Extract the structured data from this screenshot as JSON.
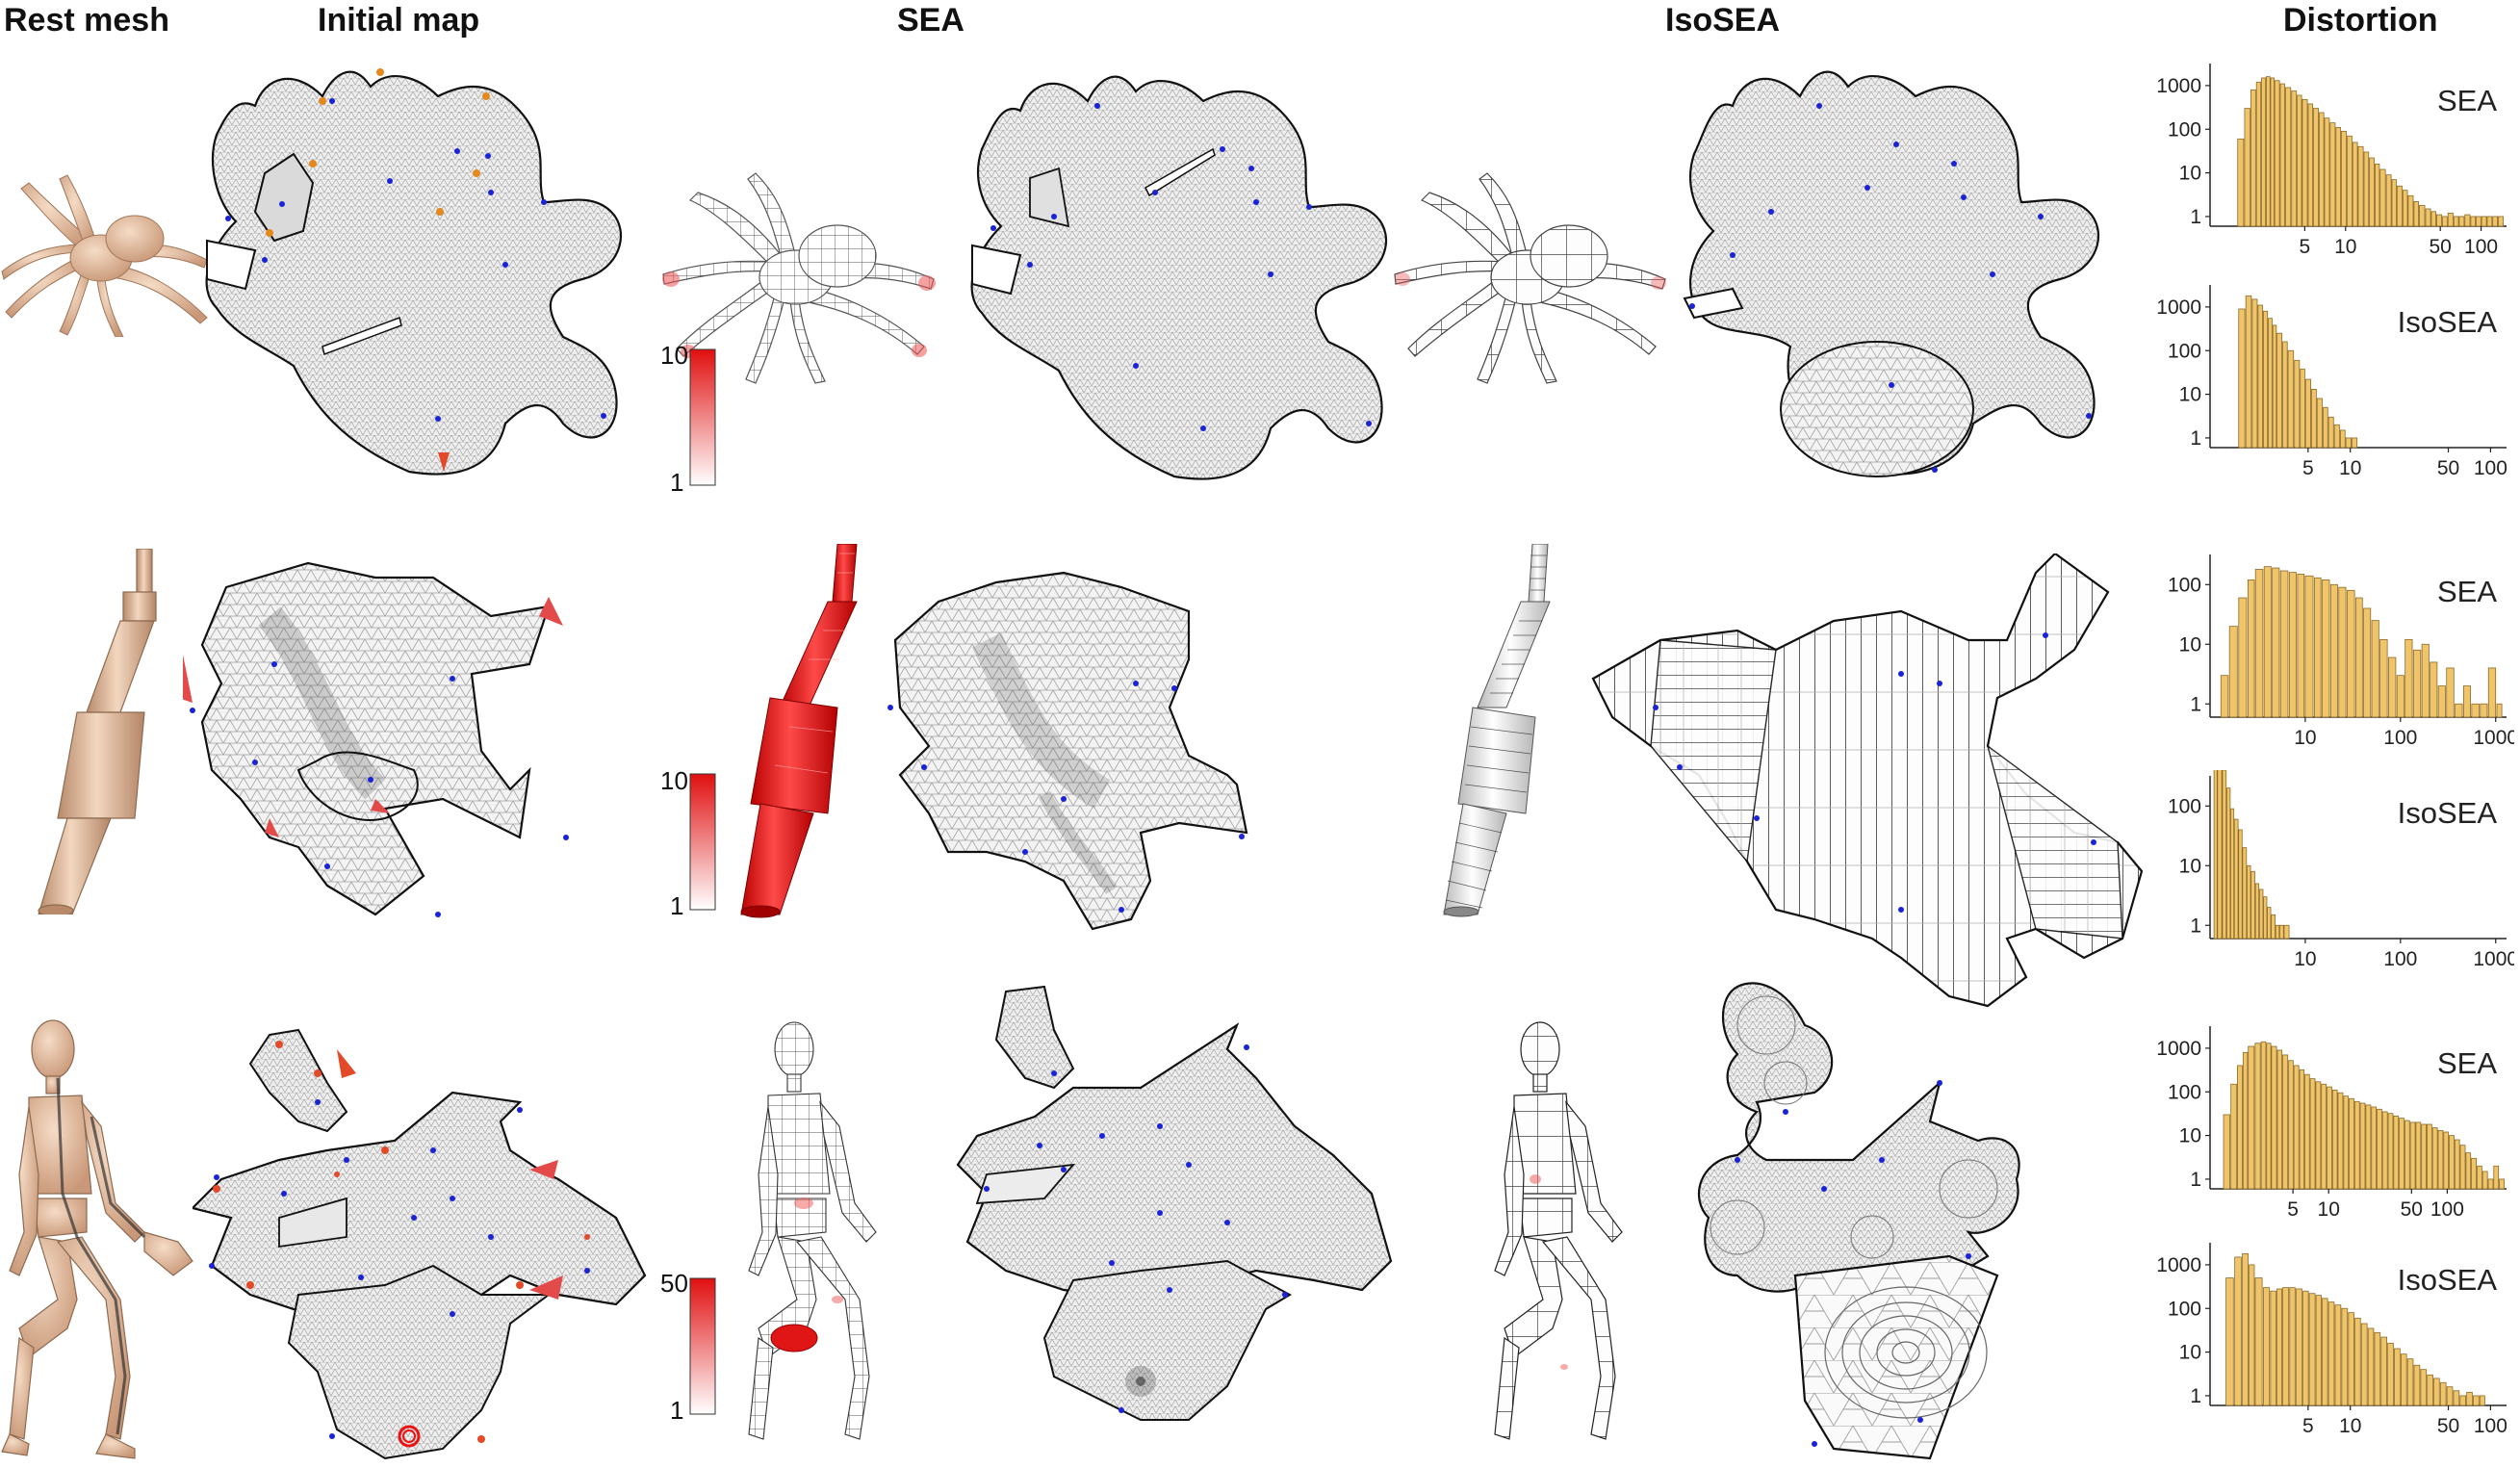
{
  "columns": {
    "rest_mesh": "Rest mesh",
    "initial_map": "Initial map",
    "sea": "SEA",
    "isosea": "IsoSEA",
    "distortion": "Distortion"
  },
  "colorbars": [
    {
      "max": "10",
      "min": "1"
    },
    {
      "max": "10",
      "min": "1"
    },
    {
      "max": "50",
      "min": "1"
    }
  ],
  "colors": {
    "bar_fill": "#f0c56a",
    "bar_stroke": "#8a6a2a",
    "colorbar_top": "#e01010",
    "mesh_fill": "#f1f1f1",
    "mesh_line": "#9a9a9a",
    "boundary": "#111111",
    "point": "#1a24d6",
    "flip": "#e34a2a",
    "rest_mesh": "#e8c3a2"
  },
  "chart_data": [
    {
      "type": "bar",
      "row": 1,
      "label": "SEA",
      "yscale": "log",
      "xscale": "log",
      "yticks": [
        "1000",
        "100",
        "10",
        "1"
      ],
      "xticks": [
        "5",
        "10",
        "50",
        "100"
      ],
      "x": [
        1.6,
        1.8,
        2,
        2.2,
        2.4,
        2.6,
        2.8,
        3,
        3.3,
        3.6,
        4,
        4.4,
        4.8,
        5.3,
        5.8,
        6.4,
        7,
        7.7,
        8.5,
        9.3,
        10.3,
        11.3,
        12.4,
        13.7,
        15,
        16.5,
        18,
        20,
        22,
        24,
        26.5,
        29,
        32,
        35,
        39,
        43,
        47,
        52,
        57,
        63,
        69,
        76,
        84,
        92,
        101,
        111,
        122,
        134
      ],
      "values": [
        60,
        300,
        800,
        1200,
        1500,
        1600,
        1500,
        1300,
        1100,
        900,
        750,
        600,
        480,
        380,
        300,
        240,
        180,
        140,
        110,
        90,
        70,
        50,
        40,
        30,
        22,
        16,
        12,
        9,
        7,
        5,
        4,
        3,
        2.2,
        1.8,
        1.5,
        1.3,
        1.1,
        1,
        1.2,
        1,
        1,
        1.1,
        1,
        1,
        1,
        1,
        1,
        1
      ]
    },
    {
      "type": "bar",
      "row": 1,
      "label": "IsoSEA",
      "yscale": "log",
      "xscale": "log",
      "yticks": [
        "1000",
        "100",
        "10",
        "1"
      ],
      "xticks": [
        "5",
        "10",
        "50",
        "100"
      ],
      "x": [
        1.6,
        1.8,
        2,
        2.2,
        2.4,
        2.6,
        2.8,
        3,
        3.3,
        3.6,
        4,
        4.4,
        4.8,
        5.3,
        5.8,
        6.4,
        7,
        7.7,
        8.5,
        9.3,
        10.3
      ],
      "values": [
        900,
        1800,
        1500,
        1100,
        800,
        550,
        380,
        250,
        160,
        100,
        60,
        38,
        22,
        13,
        8,
        5,
        3,
        2,
        1.5,
        1,
        1
      ]
    },
    {
      "type": "bar",
      "row": 2,
      "label": "SEA",
      "yscale": "log",
      "xscale": "log",
      "yticks": [
        "100",
        "10",
        "1"
      ],
      "xticks": [
        "10",
        "100",
        "1000"
      ],
      "x": [
        1.3,
        1.6,
        2,
        2.5,
        3,
        3.7,
        4.5,
        5.5,
        6.8,
        8.3,
        10,
        12.5,
        15,
        18.5,
        22.5,
        27.5,
        34,
        41,
        50,
        61,
        75,
        92,
        112,
        137,
        168,
        205,
        250,
        305,
        375,
        460,
        560,
        690,
        840,
        1030
      ],
      "values": [
        3,
        20,
        60,
        120,
        180,
        200,
        190,
        170,
        160,
        150,
        140,
        130,
        120,
        100,
        90,
        80,
        60,
        40,
        25,
        12,
        6,
        3,
        12,
        8,
        10,
        5,
        2,
        4,
        1,
        2,
        1,
        1,
        4,
        1
      ]
    },
    {
      "type": "bar",
      "row": 2,
      "label": "IsoSEA",
      "yscale": "log",
      "xscale": "log",
      "yticks": [
        "100",
        "10",
        "1"
      ],
      "xticks": [
        "10",
        "100",
        "1000"
      ],
      "x": [
        1.1,
        1.2,
        1.35,
        1.5,
        1.65,
        1.8,
        2,
        2.2,
        2.45,
        2.7,
        3,
        3.3,
        3.65,
        4,
        4.4,
        4.9,
        5.4,
        6
      ],
      "values": [
        500,
        900,
        400,
        200,
        90,
        60,
        40,
        20,
        10,
        8,
        5,
        4,
        3,
        2,
        1.5,
        1,
        1,
        1
      ]
    },
    {
      "type": "bar",
      "row": 3,
      "label": "SEA",
      "yscale": "log",
      "xscale": "log",
      "yticks": [
        "1000",
        "100",
        "10",
        "1"
      ],
      "xticks": [
        "5",
        "10",
        "50",
        "100"
      ],
      "x": [
        1.3,
        1.5,
        1.7,
        1.9,
        2.1,
        2.4,
        2.7,
        3,
        3.3,
        3.7,
        4.1,
        4.6,
        5.1,
        5.7,
        6.3,
        7,
        7.8,
        8.7,
        9.7,
        10.8,
        12,
        13.4,
        14.9,
        16.6,
        18.5,
        20.6,
        23,
        25.6,
        28.5,
        31.8,
        35.4,
        39.4,
        43.9,
        48.9,
        54.5,
        60.7,
        67.6,
        75.3,
        83.9,
        93.5,
        104,
        116,
        129,
        144,
        160,
        179,
        199,
        222,
        247,
        275
      ],
      "values": [
        30,
        150,
        400,
        800,
        1100,
        1300,
        1400,
        1300,
        1100,
        900,
        700,
        520,
        400,
        320,
        250,
        200,
        170,
        150,
        130,
        110,
        95,
        80,
        70,
        60,
        55,
        50,
        45,
        40,
        35,
        32,
        28,
        25,
        22,
        20,
        20,
        18,
        18,
        15,
        13,
        12,
        10,
        8,
        6,
        4,
        3,
        2,
        1.5,
        1,
        2,
        1
      ]
    },
    {
      "type": "bar",
      "row": 3,
      "label": "IsoSEA",
      "yscale": "log",
      "xscale": "log",
      "yticks": [
        "1000",
        "100",
        "10",
        "1"
      ],
      "xticks": [
        "5",
        "10",
        "50",
        "100"
      ],
      "x": [
        1.3,
        1.5,
        1.7,
        1.9,
        2.1,
        2.4,
        2.7,
        3,
        3.3,
        3.7,
        4.1,
        4.6,
        5.1,
        5.7,
        6.3,
        7,
        7.8,
        8.7,
        9.7,
        10.8,
        12,
        13.4,
        14.9,
        16.6,
        18.5,
        20.6,
        23,
        25.6,
        28.5,
        31.8,
        35.4,
        39.4,
        43.9,
        48.9,
        54.5,
        60.7,
        67.6,
        75.3,
        83.9
      ],
      "values": [
        500,
        1500,
        1800,
        1000,
        500,
        300,
        250,
        280,
        300,
        300,
        280,
        250,
        220,
        200,
        170,
        140,
        120,
        100,
        80,
        60,
        45,
        35,
        28,
        22,
        16,
        12,
        9,
        7,
        5,
        4,
        3,
        2.5,
        2,
        1.6,
        1.3,
        1,
        1.2,
        1,
        1
      ]
    }
  ]
}
